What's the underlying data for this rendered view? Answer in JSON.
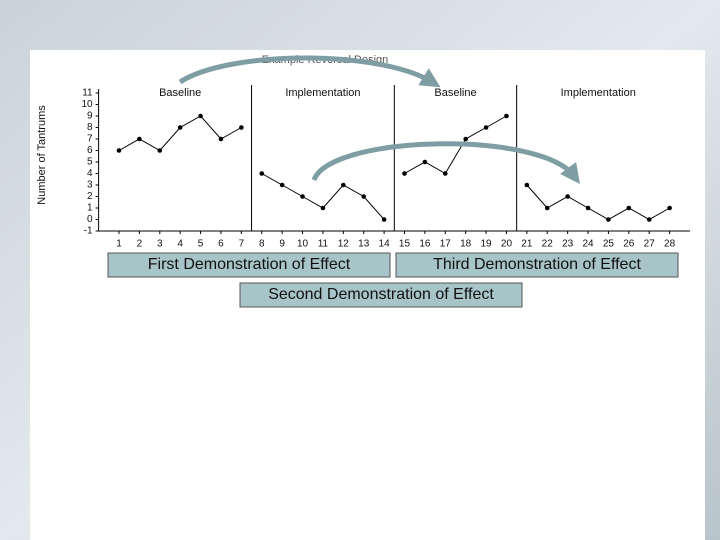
{
  "chart_data": {
    "type": "line",
    "title": "Example Reversal Design",
    "y_label": "Number of Tantrums",
    "x": [
      1,
      2,
      3,
      4,
      5,
      6,
      7,
      8,
      9,
      10,
      11,
      12,
      13,
      14,
      15,
      16,
      17,
      18,
      19,
      20,
      21,
      22,
      23,
      24,
      25,
      26,
      27,
      28
    ],
    "series": [
      {
        "color": "#000000",
        "values": [
          6,
          7,
          6,
          8,
          9,
          7,
          8,
          4,
          3,
          2,
          1,
          3,
          2,
          0,
          4,
          5,
          4,
          7,
          8,
          9,
          3,
          1,
          2,
          1,
          0,
          1,
          0,
          1
        ]
      }
    ],
    "phases": [
      {
        "label": "Baseline",
        "start": 1,
        "end": 7
      },
      {
        "label": "Implementation",
        "start": 8,
        "end": 14
      },
      {
        "label": "Baseline",
        "start": 15,
        "end": 20
      },
      {
        "label": "Implementation",
        "start": 21,
        "end": 28
      }
    ],
    "xlim": [
      0,
      29
    ],
    "ylim": [
      -1,
      11
    ],
    "xticks": [
      1,
      2,
      3,
      4,
      5,
      6,
      7,
      8,
      9,
      10,
      11,
      12,
      13,
      14,
      15,
      16,
      17,
      18,
      19,
      20,
      21,
      22,
      23,
      24,
      25,
      26,
      27,
      28
    ],
    "yticks": [
      -1,
      0,
      1,
      2,
      3,
      4,
      5,
      6,
      7,
      8,
      9,
      10,
      11
    ],
    "annotations": [
      "First Demonstration of Effect",
      "Third Demonstration of Effect",
      "Second Demonstration of Effect"
    ]
  }
}
